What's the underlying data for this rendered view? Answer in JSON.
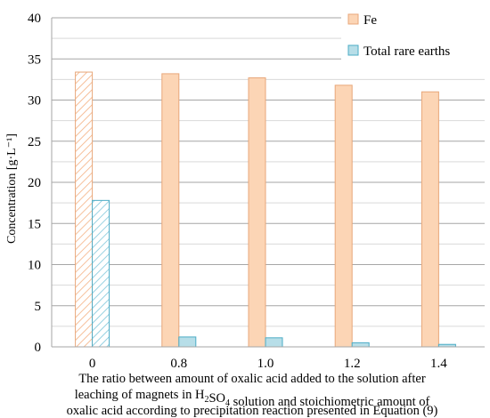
{
  "chart_data": {
    "type": "bar",
    "categories": [
      "0",
      "0.8",
      "1.0",
      "1.2",
      "1.4"
    ],
    "series": [
      {
        "name": "Fe",
        "values": [
          33.4,
          33.2,
          32.7,
          31.8,
          31.0
        ],
        "color": "#FCD5B5",
        "stroke": "#E8A77A"
      },
      {
        "name": "Total rare earths",
        "values": [
          17.8,
          1.2,
          1.1,
          0.5,
          0.3
        ],
        "color": "#B7DEE8",
        "stroke": "#4BACC6"
      }
    ],
    "hatched_categories": [
      "0"
    ],
    "ylabel": "Concentration [g·L⁻¹]",
    "ylim": [
      0,
      40
    ],
    "yticks": [
      0,
      5,
      10,
      15,
      20,
      25,
      30,
      35,
      40
    ],
    "grid": true,
    "legend": "top-right",
    "xlabel_lines": [
      "The ratio between amount of oxalic acid added to the solution after",
      "leaching of magnets in H₂SO₄ solution and stoichiometric amount of",
      "oxalic acid according to precipitation reaction presented in Equation (9)"
    ]
  }
}
